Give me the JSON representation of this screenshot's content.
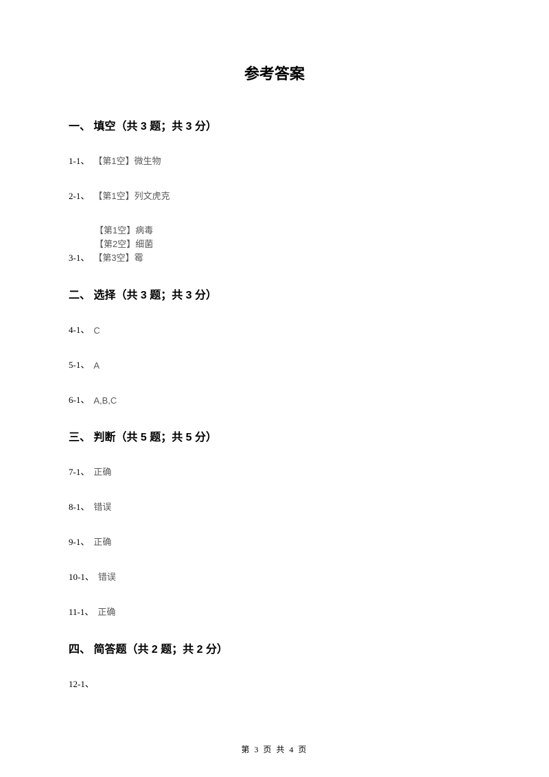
{
  "title": "参考答案",
  "sections": [
    {
      "heading": "一、 填空（共 3 题；共 3 分）",
      "items": [
        {
          "label": "1-1、",
          "answers": [
            "【第1空】微生物"
          ]
        },
        {
          "label": "2-1、",
          "answers": [
            "【第1空】列文虎克"
          ]
        },
        {
          "label": "3-1、",
          "answers": [
            "【第1空】病毒",
            "【第2空】细菌",
            "【第3空】霉"
          ]
        }
      ]
    },
    {
      "heading": "二、 选择（共 3 题；共 3 分）",
      "items": [
        {
          "label": "4-1、",
          "answers": [
            "C"
          ]
        },
        {
          "label": "5-1、",
          "answers": [
            "A"
          ]
        },
        {
          "label": "6-1、",
          "answers": [
            "A,B,C"
          ]
        }
      ]
    },
    {
      "heading": "三、 判断（共 5 题；共 5 分）",
      "items": [
        {
          "label": "7-1、",
          "answers": [
            "正确"
          ]
        },
        {
          "label": "8-1、",
          "answers": [
            "错误"
          ]
        },
        {
          "label": "9-1、",
          "answers": [
            "正确"
          ]
        },
        {
          "label": "10-1、",
          "answers": [
            "错误"
          ]
        },
        {
          "label": "11-1、",
          "answers": [
            "正确"
          ]
        }
      ]
    },
    {
      "heading": "四、 简答题（共 2 题；共 2 分）",
      "items": [
        {
          "label": "12-1、",
          "answers": [
            ""
          ]
        }
      ]
    }
  ],
  "footer": "第 3 页 共 4 页"
}
